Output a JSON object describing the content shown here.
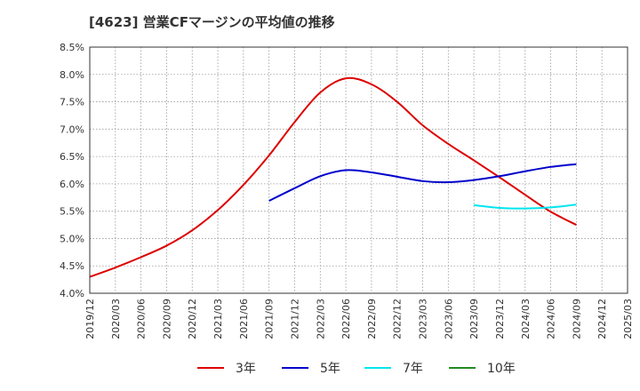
{
  "chart_data": {
    "type": "line",
    "title": "[4623]  営業CFマージンの平均値の推移",
    "xlabel": "",
    "ylabel": "",
    "grid": true,
    "legend_position": "bottom",
    "x_ticks": [
      "2019/12",
      "2020/03",
      "2020/06",
      "2020/09",
      "2020/12",
      "2021/03",
      "2021/06",
      "2021/09",
      "2021/12",
      "2022/03",
      "2022/06",
      "2022/09",
      "2022/12",
      "2023/03",
      "2023/06",
      "2023/09",
      "2023/12",
      "2024/03",
      "2024/06",
      "2024/09",
      "2024/12",
      "2025/03"
    ],
    "y_ticks": [
      "4.0%",
      "4.5%",
      "5.0%",
      "5.5%",
      "6.0%",
      "6.5%",
      "7.0%",
      "7.5%",
      "8.0%",
      "8.5%"
    ],
    "ylim": [
      4.0,
      8.5
    ],
    "series": [
      {
        "name": "3年",
        "color": "#dd0000",
        "x": [
          "2019/12",
          "2020/03",
          "2020/06",
          "2020/09",
          "2020/12",
          "2021/03",
          "2021/06",
          "2021/09",
          "2021/12",
          "2022/03",
          "2022/06",
          "2022/09",
          "2022/12",
          "2023/03",
          "2023/06",
          "2023/09",
          "2023/12",
          "2024/03",
          "2024/06",
          "2024/09"
        ],
        "values": [
          4.3,
          4.47,
          4.66,
          4.87,
          5.15,
          5.52,
          5.98,
          6.52,
          7.13,
          7.67,
          7.93,
          7.82,
          7.5,
          7.07,
          6.73,
          6.43,
          6.12,
          5.8,
          5.49,
          5.25
        ]
      },
      {
        "name": "5年",
        "color": "#0000cc",
        "x": [
          "2021/09",
          "2021/12",
          "2022/03",
          "2022/06",
          "2022/09",
          "2022/12",
          "2023/03",
          "2023/06",
          "2023/09",
          "2023/12",
          "2024/03",
          "2024/06",
          "2024/09"
        ],
        "values": [
          5.69,
          5.92,
          6.14,
          6.25,
          6.21,
          6.13,
          6.05,
          6.03,
          6.07,
          6.14,
          6.23,
          6.31,
          6.36
        ]
      },
      {
        "name": "7年",
        "color": "#00e5ee",
        "x": [
          "2023/09",
          "2023/12",
          "2024/03",
          "2024/06",
          "2024/09"
        ],
        "values": [
          5.61,
          5.56,
          5.55,
          5.57,
          5.62
        ]
      },
      {
        "name": "10年",
        "color": "#228b22",
        "x": [],
        "values": []
      }
    ]
  }
}
